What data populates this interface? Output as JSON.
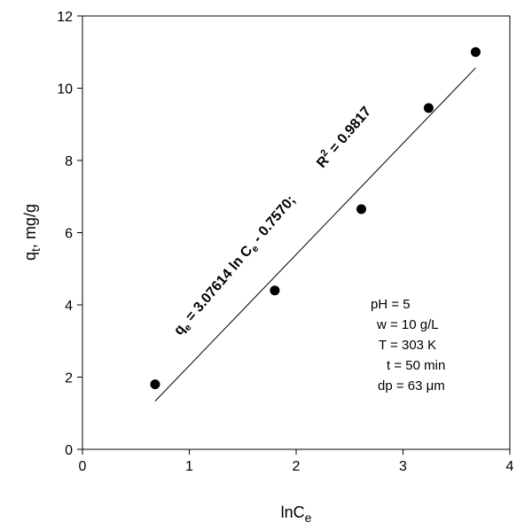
{
  "chart_data": {
    "type": "scatter",
    "title": "",
    "xlabel": "lnC",
    "xlabel_sub": "e",
    "ylabel": "q",
    "ylabel_sub": "t",
    "ylabel_suffix": ", mg/g",
    "xlim": [
      0,
      4
    ],
    "ylim": [
      0,
      12
    ],
    "xticks": [
      0,
      1,
      2,
      3,
      4
    ],
    "yticks": [
      0,
      2,
      4,
      6,
      8,
      10,
      12
    ],
    "grid": false,
    "series": [
      {
        "points": [
          {
            "x": 0.68,
            "y": 1.8
          },
          {
            "x": 1.8,
            "y": 4.4
          },
          {
            "x": 2.61,
            "y": 6.65
          },
          {
            "x": 3.24,
            "y": 9.45
          },
          {
            "x": 3.68,
            "y": 11.0
          }
        ],
        "marker_color": "#000000"
      }
    ],
    "fit_line": {
      "slope": 3.07614,
      "intercept": -0.757,
      "x_range": [
        0.68,
        3.68
      ]
    },
    "equation_parts": {
      "q": "q",
      "q_sub": "e",
      "mid": " = 3.07614 ln C",
      "c_sub": "e",
      "tail": " - 0.7570;"
    },
    "r2_parts": {
      "r": "R",
      "sup": "2",
      "tail": " = 0.9817"
    },
    "conditions": [
      "pH = 5",
      "w = 10 g/L",
      "T = 303 K",
      "t = 50 min",
      "dp = 63  μm"
    ]
  }
}
